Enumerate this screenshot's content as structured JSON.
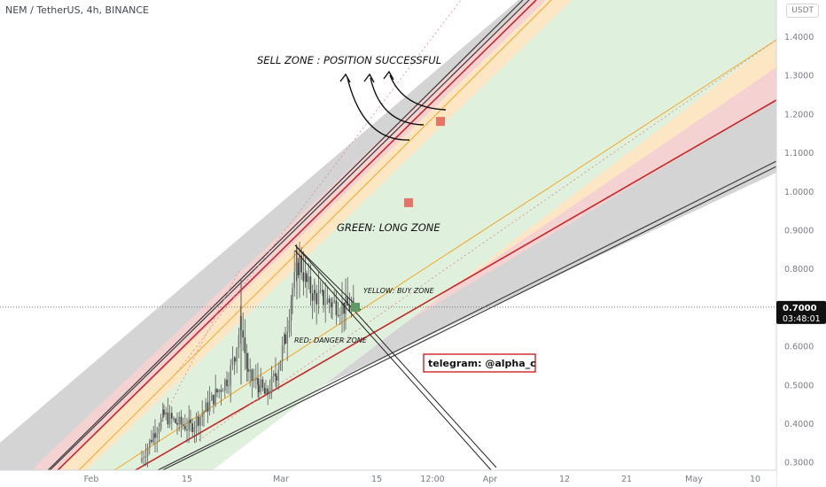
{
  "header": {
    "title": "NEM / TetherUS, 4h, BINANCE",
    "currency": "USDT"
  },
  "colors": {
    "gray_band": "#d4d4d4",
    "red_band": "#f5d2d2",
    "yellow_band": "#fde6c4",
    "green_band": "#dff0dc",
    "red_line": "#c62828",
    "orange_line": "#f5a623",
    "candle": "#5a5a5a",
    "marker_red": "#e57368",
    "marker_green": "#5e9a63"
  },
  "chart_data": {
    "type": "candlestick",
    "y_ticks": [
      "1.4000",
      "1.3000",
      "1.2000",
      "1.1000",
      "1.0000",
      "0.9000",
      "0.8000",
      "0.6000",
      "0.5000",
      "0.4000",
      "0.3000"
    ],
    "x_ticks": [
      "Feb",
      "15",
      "Mar",
      "15",
      "12:00",
      "Apr",
      "12",
      "21",
      "May",
      "10"
    ],
    "current_price": "0.7000",
    "countdown": "03:48:01",
    "ylim": [
      0.29,
      1.45
    ],
    "bands": [
      "gray",
      "red",
      "yellow",
      "green"
    ],
    "annotations": {
      "sell_zone": "SELL ZONE : POSITION SUCCESSFUL",
      "green_zone": "GREEN: LONG ZONE",
      "yellow_zone": "YELLOW: BUY ZONE",
      "red_zone": "RED: DANGER ZONE",
      "telegram": "telegram: @alpha_c"
    },
    "markers": [
      {
        "x_label": "12:00",
        "value": 1.18,
        "color": "red"
      },
      {
        "x_label": "15",
        "value": 0.97,
        "color": "red"
      },
      {
        "x_label": "15",
        "value": 0.7,
        "color": "green"
      }
    ]
  }
}
